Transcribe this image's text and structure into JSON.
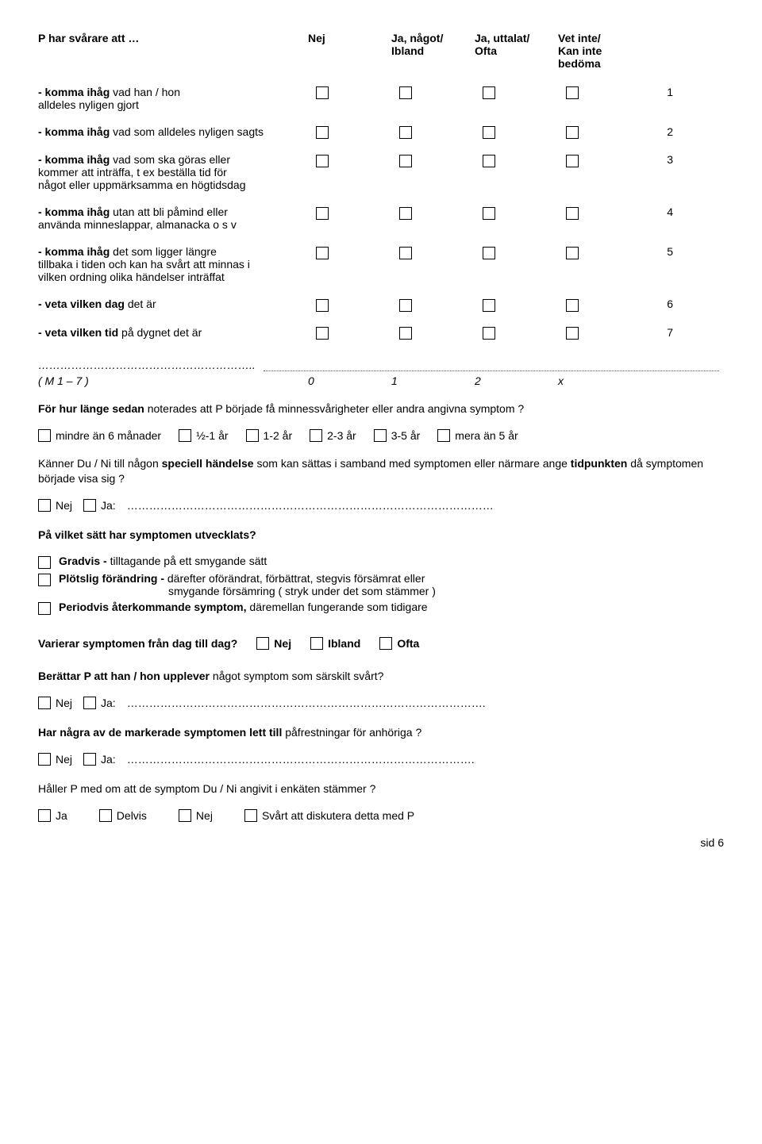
{
  "header": {
    "lead": "P har svårare att …",
    "columns": [
      {
        "top": "Nej",
        "sub": ""
      },
      {
        "top": "Ja, något/",
        "sub": "Ibland"
      },
      {
        "top": "Ja, uttalat/",
        "sub": "Ofta"
      },
      {
        "top": "Vet inte/",
        "sub": "Kan inte\nbedöma"
      }
    ]
  },
  "rows": [
    {
      "dash": "- komma ihåg",
      "body": " vad han / hon\nalldeles nyligen gjort",
      "num": "1"
    },
    {
      "dash": "- komma ihåg",
      "body": " vad som alldeles nyligen sagts",
      "num": "2"
    },
    {
      "dash": "- komma ihåg",
      "body": " vad som ska göras eller\nkommer att inträffa, t ex beställa tid för\nnågot eller uppmärksamma en högtidsdag",
      "num": "3"
    },
    {
      "dash": "- komma ihåg",
      "body": " utan att bli påmind eller\nanvända minneslappar, almanacka o s v",
      "num": "4"
    },
    {
      "dash": "- komma ihåg",
      "body": " det som ligger längre\ntillbaka i tiden och kan ha svårt att minnas i\nvilken ordning olika händelser inträffat",
      "num": "5"
    },
    {
      "dash": "- veta vilken dag",
      "body": " det är",
      "num": "6"
    },
    {
      "dash": "- veta vilken tid",
      "body": " på dygnet det är",
      "num": "7"
    }
  ],
  "score": {
    "label": "( M 1 – 7 )",
    "v0": "0",
    "v1": "1",
    "v2": "2",
    "vx": "x"
  },
  "q_duration": {
    "pre": "För hur länge sedan ",
    "post": "noterades att P började få minnessvårigheter eller andra angivna symptom ?",
    "opts": [
      "mindre än 6 månader",
      "½-1 år",
      "1-2 år",
      "2-3 år",
      "3-5 år",
      "mera än 5 år"
    ]
  },
  "q_special": {
    "line1a": "Känner Du / Ni till någon ",
    "line1b": "speciell händelse",
    "line1c": " som kan sättas i samband med symptomen eller närmare ange ",
    "line1d": "tidpunkten",
    "line1e": " då symptomen började visa sig ?",
    "nej": "Nej",
    "ja": "Ja:"
  },
  "q_develop": {
    "title": "På vilket sätt har symptomen utvecklats?",
    "opts": [
      {
        "b": "Gradvis - ",
        "rest": "tilltagande på ett smygande sätt"
      },
      {
        "b": "Plötslig förändring - ",
        "rest": "därefter oförändrat, förbättrat, stegvis försämrat eller",
        "sub": "smygande försämring ( stryk under det som stämmer )"
      },
      {
        "b": "Periodvis återkommande symptom, ",
        "rest": "däremellan fungerande som tidigare"
      }
    ]
  },
  "q_varierar": {
    "q": "Varierar symptomen från dag till dag?",
    "opts": [
      "Nej",
      "Ibland",
      "Ofta"
    ]
  },
  "q_berattar": {
    "q_a": "Berättar P att han / hon upplever ",
    "q_b": "något symptom som särskilt svårt?",
    "nej": "Nej",
    "ja": "Ja:"
  },
  "q_markerade": {
    "q_a": "Har några av de markerade symptomen lett till ",
    "q_b": "påfrestningar för anhöriga ?",
    "nej": "Nej",
    "ja": "Ja:"
  },
  "q_haller": {
    "q": "Håller P med om att de symptom Du / Ni angivit i enkäten stämmer ?",
    "opts": [
      "Ja",
      "Delvis",
      "Nej",
      "Svårt att diskutera detta med P"
    ]
  },
  "footer": "sid 6"
}
